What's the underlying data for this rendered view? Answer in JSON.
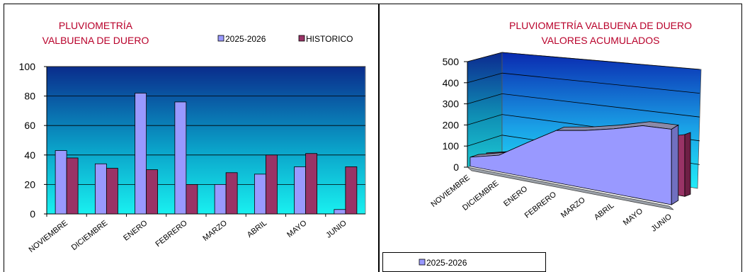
{
  "chart_data": [
    {
      "type": "bar",
      "title": [
        "PLUVIOMETRÍA",
        "VALBUENA DE DUERO"
      ],
      "categories": [
        "NOVIEMBRE",
        "DICIEMBRE",
        "ENERO",
        "FEBRERO",
        "MARZO",
        "ABRIL",
        "MAYO",
        "JUNIO"
      ],
      "series": [
        {
          "name": "2025-2026",
          "color": "#9999ff",
          "values": [
            43,
            34,
            82,
            76,
            20,
            27,
            32,
            3
          ]
        },
        {
          "name": "HISTORICO",
          "color": "#993366",
          "values": [
            38,
            31,
            30,
            20,
            28,
            40,
            41,
            32
          ]
        }
      ],
      "ylim": [
        0,
        100
      ],
      "yticks": [
        0,
        20,
        40,
        60,
        80,
        100
      ],
      "grid": true,
      "legend": "top-right"
    },
    {
      "type": "area",
      "three_d": true,
      "title": [
        "PLUVIOMETRÍA VALBUENA DE DUERO",
        "VALORES ACUMULADOS"
      ],
      "categories": [
        "NOVIEMBRE",
        "DICIEMBRE",
        "ENERO",
        "FEBRERO",
        "MARZO",
        "ABRIL",
        "MAYO",
        "JUNIO"
      ],
      "series": [
        {
          "name": "2025-2026",
          "color": "#9999ff",
          "values": [
            43,
            77,
            159,
            235,
            255,
            282,
            314,
            317
          ]
        },
        {
          "name": "",
          "color": "#993366",
          "values": [
            38,
            69,
            99,
            119,
            147,
            187,
            228,
            260
          ]
        }
      ],
      "ylim": [
        0,
        500
      ],
      "yticks": [
        0,
        100,
        200,
        300,
        400,
        500
      ],
      "grid": true,
      "legend": "bottom-left"
    }
  ]
}
